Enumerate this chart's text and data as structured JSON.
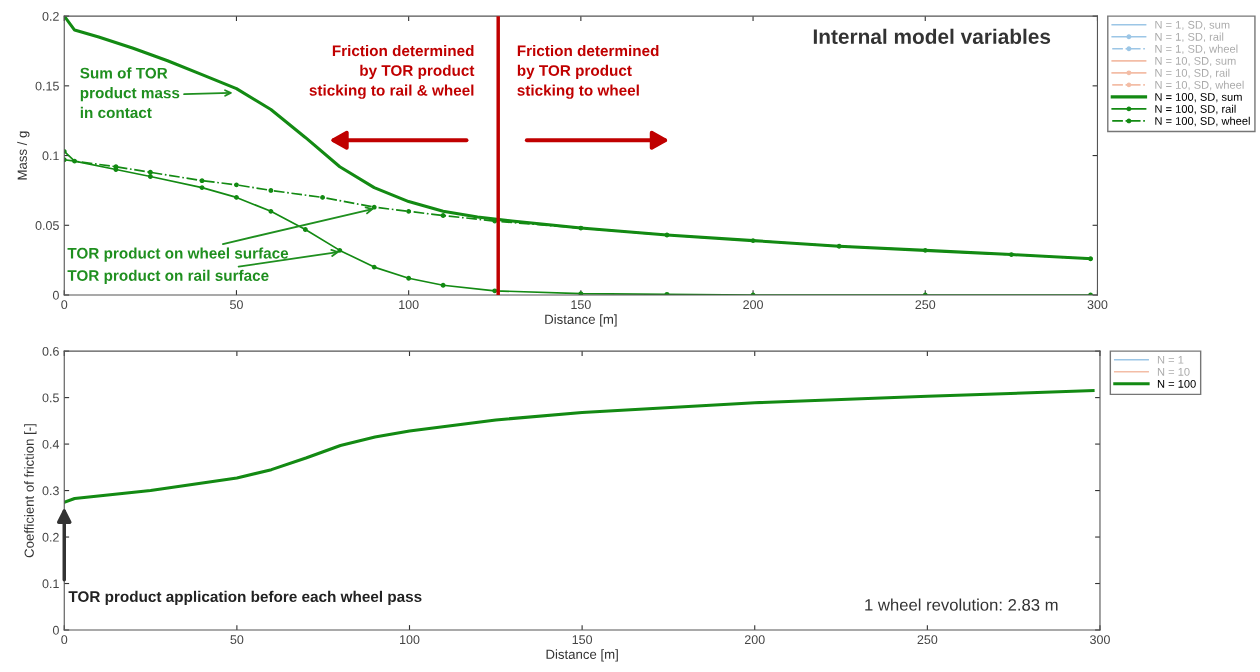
{
  "chart_data": [
    {
      "type": "line",
      "xlabel": "Distance [m]",
      "ylabel": "Mass / g",
      "xlim": [
        0,
        300
      ],
      "ylim": [
        0,
        0.2
      ],
      "xticks": [
        0,
        50,
        100,
        150,
        200,
        250,
        300
      ],
      "yticks": [
        0,
        0.05,
        0.1,
        0.15,
        0.2
      ],
      "grid": false,
      "legend": "top right",
      "series": [
        {
          "name": "N = 1, SD, sum",
          "color": "#9cc6e6",
          "line_style": "solid",
          "marker": "none"
        },
        {
          "name": "N = 1, SD, rail",
          "color": "#9cc6e6",
          "line_style": "solid",
          "marker": "circle"
        },
        {
          "name": "N = 1, SD, wheel",
          "color": "#9cc6e6",
          "line_style": "dashdot",
          "marker": "circle"
        },
        {
          "name": "N = 10, SD, sum",
          "color": "#f3bda6",
          "line_style": "solid",
          "marker": "none"
        },
        {
          "name": "N = 10, SD, rail",
          "color": "#f3bda6",
          "line_style": "solid",
          "marker": "circle"
        },
        {
          "name": "N = 10, SD, wheel",
          "color": "#f3bda6",
          "line_style": "dashdot",
          "marker": "circle"
        },
        {
          "name": "N = 100, SD, sum",
          "color": "#138a13",
          "line_style": "solid",
          "marker": "none",
          "x": [
            0,
            3,
            10,
            20,
            30,
            40,
            50,
            60,
            70,
            80,
            90,
            100,
            110,
            120,
            130,
            150,
            175,
            200,
            225,
            250,
            275,
            298
          ],
          "values": [
            0.2,
            0.19,
            0.185,
            0.177,
            0.168,
            0.158,
            0.148,
            0.133,
            0.113,
            0.092,
            0.077,
            0.067,
            0.06,
            0.056,
            0.053,
            0.048,
            0.043,
            0.039,
            0.035,
            0.032,
            0.029,
            0.026
          ]
        },
        {
          "name": "N = 100, SD, rail",
          "color": "#138a13",
          "line_style": "solid",
          "marker": "circle",
          "x": [
            0,
            3,
            15,
            25,
            40,
            50,
            60,
            70,
            80,
            90,
            100,
            110,
            125,
            150,
            175,
            200,
            250,
            298
          ],
          "values": [
            0.103,
            0.096,
            0.09,
            0.085,
            0.077,
            0.07,
            0.06,
            0.047,
            0.032,
            0.02,
            0.012,
            0.007,
            0.003,
            0.001,
            0.0005,
            0,
            0,
            0
          ]
        },
        {
          "name": "N = 100, SD, wheel",
          "color": "#138a13",
          "line_style": "dashdot",
          "marker": "circle",
          "x": [
            0,
            15,
            25,
            40,
            50,
            60,
            75,
            90,
            100,
            110,
            125,
            150,
            175,
            200,
            225,
            250,
            275,
            298
          ],
          "values": [
            0.097,
            0.092,
            0.088,
            0.082,
            0.079,
            0.075,
            0.07,
            0.063,
            0.06,
            0.057,
            0.053,
            0.048,
            0.043,
            0.039,
            0.035,
            0.032,
            0.029,
            0.026
          ]
        }
      ],
      "ref_lines": [
        {
          "axis": "x",
          "value": 126,
          "color": "#c00000",
          "line_style": "solid"
        }
      ],
      "annotations": [
        "Sum of TOR\nproduct mass\nin contact",
        {
          "text": "TOR product on wheel surface",
          "x": 90,
          "y": 0.062
        },
        {
          "text": "TOR product on rail surface",
          "x": 80,
          "y": 0.031
        },
        "Friction determined\nby TOR product\nsticking to rail & wheel",
        "Friction determined\nby TOR product\nsticking to wheel",
        "Internal model variables"
      ]
    },
    {
      "type": "line",
      "xlabel": "Distance [m]",
      "ylabel": "Coefficient of friction [-]",
      "xlim": [
        0,
        300
      ],
      "ylim": [
        0,
        0.6
      ],
      "xticks": [
        0,
        50,
        100,
        150,
        200,
        250,
        300
      ],
      "yticks": [
        0,
        0.1,
        0.2,
        0.3,
        0.4,
        0.5,
        0.6
      ],
      "grid": false,
      "legend": "top right",
      "series": [
        {
          "name": "N = 1",
          "color": "#9cc6e6",
          "line_style": "solid",
          "marker": "none"
        },
        {
          "name": "N = 10",
          "color": "#f3bda6",
          "line_style": "solid",
          "marker": "none"
        },
        {
          "name": "N = 100",
          "color": "#138a13",
          "line_style": "solid",
          "marker": "none",
          "x": [
            0,
            3,
            25,
            50,
            60,
            70,
            80,
            90,
            100,
            125,
            150,
            200,
            250,
            298
          ],
          "values": [
            0.275,
            0.283,
            0.3,
            0.327,
            0.345,
            0.37,
            0.397,
            0.415,
            0.428,
            0.452,
            0.468,
            0.489,
            0.503,
            0.515
          ]
        }
      ],
      "annotations": [
        {
          "text": "TOR product application before each wheel pass",
          "x": 0,
          "y": 0.27
        },
        "1 wheel revolution: 2.83 m"
      ]
    }
  ]
}
